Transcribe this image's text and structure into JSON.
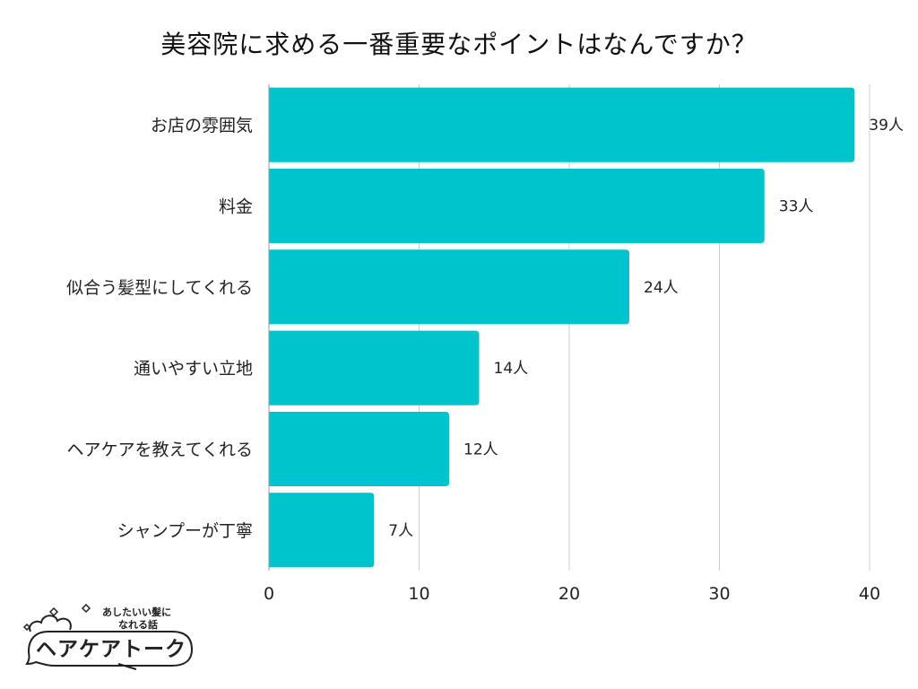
{
  "chart_data": {
    "type": "bar",
    "orientation": "horizontal",
    "title": "美容院に求める一番重要なポイントはなんですか？",
    "categories": [
      "お店の雰囲気",
      "料金",
      "似合う髪型にしてくれる",
      "通いやすい立地",
      "ヘアケアを教えてくれる",
      "シャンプーが丁寧"
    ],
    "values": [
      39,
      33,
      24,
      14,
      12,
      7
    ],
    "value_labels": [
      "39人",
      "33人",
      "24人",
      "14人",
      "12人",
      "7人"
    ],
    "xlim": [
      0,
      40
    ],
    "xticks": [
      0,
      10,
      20,
      30,
      40
    ],
    "xtick_labels": [
      "0",
      "10",
      "20",
      "30",
      "40"
    ],
    "xlabel": "",
    "ylabel": "",
    "grid": "vertical",
    "bar_color": "#00c4cc",
    "grid_color": "#cccccc"
  },
  "logo": {
    "tagline_line1": "あしたいい髪に",
    "tagline_line2": "なれる話",
    "name": "ヘアケアトーク"
  }
}
